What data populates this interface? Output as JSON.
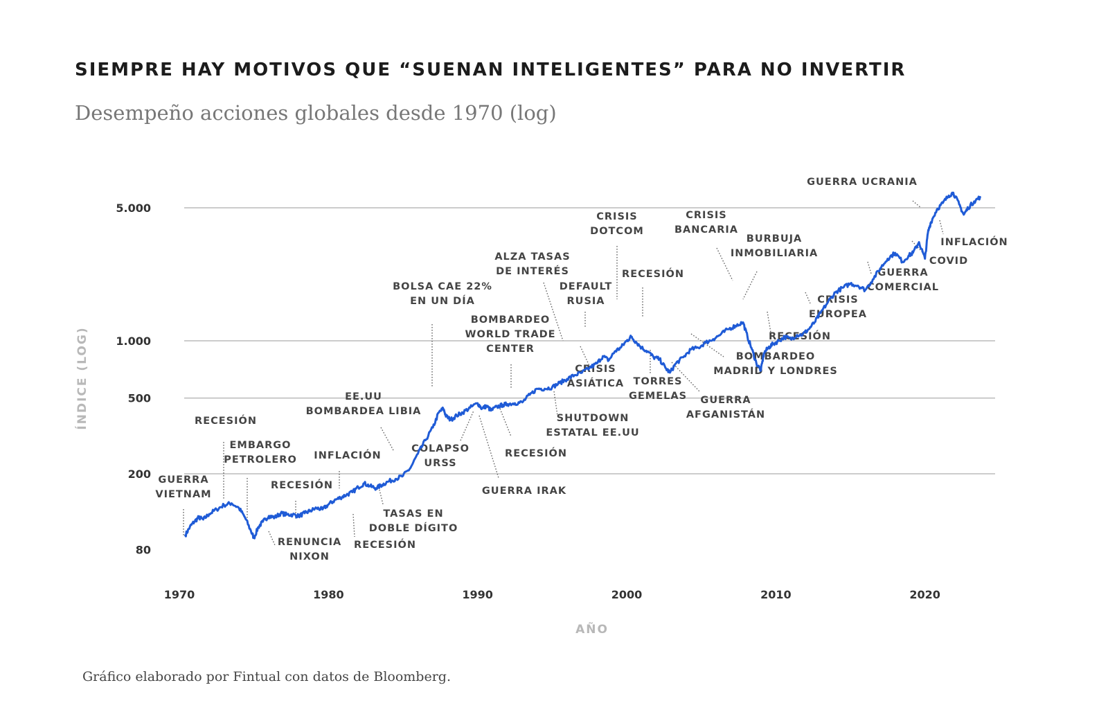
{
  "header": {
    "title": "SIEMPRE HAY MOTIVOS QUE “SUENAN INTELIGENTES” PARA NO INVERTIR",
    "subtitle": "Desempeño acciones globales desde 1970 (log)"
  },
  "footer": {
    "source": "Gráfico elaborado por Fintual con datos de Bloomberg."
  },
  "colors": {
    "line": "#1f5bd6",
    "grid": "#9a9a9a",
    "text": "#333333",
    "axis_label": "#b8b8b8"
  },
  "chart_data": {
    "type": "line",
    "title": "SIEMPRE HAY MOTIVOS QUE “SUENAN INTELIGENTES” PARA NO INVERTIR",
    "subtitle": "Desempeño acciones globales desde 1970 (log)",
    "xlabel": "AÑO",
    "ylabel": "ÍNDICE (LOG)",
    "yscale": "log",
    "xlim": [
      1970,
      2024
    ],
    "ylim": [
      80,
      6000
    ],
    "grid": "horizontal",
    "x_ticks": [
      1970,
      1980,
      1990,
      2000,
      2010,
      2020
    ],
    "x_tick_labels": [
      "1970",
      "1980",
      "1990",
      "2000",
      "2010",
      "2020"
    ],
    "y_ticks": [
      80,
      200,
      500,
      1000,
      5000
    ],
    "y_tick_labels": [
      "80",
      "200",
      "500",
      "1.000",
      "5.000"
    ],
    "series": [
      {
        "x": [
          1970.4,
          1970.7,
          1971.0,
          1971.3,
          1971.6,
          1972.0,
          1972.5,
          1973.0,
          1973.5,
          1974.0,
          1974.4,
          1974.8,
          1975.0,
          1975.3,
          1975.6,
          1976.0,
          1976.4,
          1976.8,
          1977.2,
          1977.6,
          1978.0,
          1978.4,
          1978.8,
          1979.2,
          1979.6,
          1980.0,
          1980.4,
          1980.8,
          1981.2,
          1981.6,
          1982.0,
          1982.4,
          1982.8,
          1983.2,
          1983.6,
          1984.0,
          1984.5,
          1985.0,
          1985.5,
          1986.0,
          1986.5,
          1987.0,
          1987.4,
          1987.7,
          1987.9,
          1988.2,
          1988.6,
          1989.0,
          1989.5,
          1990.0,
          1990.3,
          1990.6,
          1990.9,
          1991.3,
          1991.7,
          1992.0,
          1992.5,
          1993.0,
          1993.5,
          1994.0,
          1994.5,
          1995.0,
          1995.5,
          1996.0,
          1996.5,
          1997.0,
          1997.5,
          1998.0,
          1998.4,
          1998.8,
          1999.2,
          1999.6,
          2000.0,
          2000.3,
          2000.6,
          2001.0,
          2001.4,
          2001.8,
          2002.2,
          2002.6,
          2002.9,
          2003.3,
          2003.8,
          2004.3,
          2004.8,
          2005.3,
          2005.8,
          2006.3,
          2006.8,
          2007.3,
          2007.8,
          2008.1,
          2008.4,
          2008.7,
          2009.0,
          2009.2,
          2009.5,
          2009.8,
          2010.2,
          2010.6,
          2011.0,
          2011.4,
          2011.8,
          2012.2,
          2012.6,
          2013.0,
          2013.5,
          2014.0,
          2014.5,
          2015.0,
          2015.5,
          2016.0,
          2016.5,
          2017.0,
          2017.5,
          2018.0,
          2018.5,
          2018.9,
          2019.2,
          2019.6,
          2020.0,
          2020.2,
          2020.4,
          2020.8,
          2021.2,
          2021.6,
          2021.9,
          2022.3,
          2022.6,
          2022.9,
          2023.3,
          2023.7
        ],
        "y": [
          95,
          105,
          112,
          118,
          115,
          123,
          130,
          137,
          140,
          132,
          118,
          100,
          92,
          105,
          112,
          120,
          118,
          124,
          122,
          122,
          120,
          124,
          128,
          132,
          130,
          138,
          145,
          150,
          155,
          160,
          170,
          178,
          172,
          168,
          175,
          182,
          188,
          195,
          215,
          255,
          300,
          350,
          420,
          440,
          400,
          385,
          405,
          420,
          445,
          470,
          440,
          455,
          430,
          450,
          460,
          465,
          470,
          475,
          520,
          560,
          560,
          570,
          600,
          630,
          660,
          680,
          720,
          760,
          830,
          790,
          880,
          920,
          1000,
          1050,
          990,
          920,
          880,
          820,
          800,
          720,
          680,
          760,
          820,
          900,
          920,
          980,
          1020,
          1080,
          1150,
          1200,
          1250,
          1050,
          900,
          760,
          700,
          860,
          920,
          960,
          1000,
          1050,
          1020,
          1070,
          1080,
          1150,
          1250,
          1400,
          1600,
          1800,
          1900,
          2000,
          1950,
          1850,
          2100,
          2400,
          2700,
          2900,
          2600,
          2800,
          2900,
          3300,
          2700,
          3700,
          4200,
          4900,
          5300,
          5800,
          6000,
          5200,
          4600,
          5000,
          5400,
          5700
        ]
      }
    ],
    "annotations": [
      {
        "lines": [
          "GUERRA",
          "VIETNAM"
        ],
        "x": 1970.3
      },
      {
        "lines": [
          "RECESIÓN"
        ],
        "x": 1973.0
      },
      {
        "lines": [
          "EMBARGO",
          "PETROLERO"
        ],
        "x": 1974.8
      },
      {
        "lines": [
          "RENUNCIA",
          "NIXON"
        ],
        "x": 1976.7
      },
      {
        "lines": [
          "RECESIÓN"
        ],
        "x": 1979.0
      },
      {
        "lines": [
          "INFLACIÓN"
        ],
        "x": 1981.8
      },
      {
        "lines": [
          "RECESIÓN"
        ],
        "x": 1982.8
      },
      {
        "lines": [
          "TASAS EN",
          "DOBLE DÍGITO"
        ],
        "x": 1984.2
      },
      {
        "lines": [
          "EE.UU",
          "BOMBARDEA LIBIA"
        ],
        "x": 1986.0
      },
      {
        "lines": [
          "BOLSA CAE 22%",
          "EN UN DÍA"
        ],
        "x": 1987.8
      },
      {
        "lines": [
          "COLAPSO",
          "URSS"
        ],
        "x": 1990.6
      },
      {
        "lines": [
          "GUERRA IRAK"
        ],
        "x": 1991.0
      },
      {
        "lines": [
          "RECESIÓN"
        ],
        "x": 1992.2
      },
      {
        "lines": [
          "BOMBARDEO",
          "WORLD TRADE",
          "CENTER"
        ],
        "x": 1993.2
      },
      {
        "lines": [
          "SHUTDOWN",
          "ESTATAL EE.UU"
        ],
        "x": 1995.7
      },
      {
        "lines": [
          "ALZA TASAS",
          "DE INTERÉS"
        ],
        "x": 1996.6
      },
      {
        "lines": [
          "CRISIS",
          "ASIÁTICA"
        ],
        "x": 1997.6
      },
      {
        "lines": [
          "DEFAULT",
          "RUSIA"
        ],
        "x": 1998.2
      },
      {
        "lines": [
          "CRISIS",
          "DOTCOM"
        ],
        "x": 1999.7
      },
      {
        "lines": [
          "RECESIÓN"
        ],
        "x": 2001.3
      },
      {
        "lines": [
          "TORRES",
          "GEMELAS"
        ],
        "x": 2001.8
      },
      {
        "lines": [
          "GUERRA",
          "AFGANISTÁN"
        ],
        "x": 2003.2
      },
      {
        "lines": [
          "BOMBARDEO",
          "MADRID Y LONDRES"
        ],
        "x": 2004.7
      },
      {
        "lines": [
          "CRISIS",
          "BANCARIA"
        ],
        "x": 2006.8
      },
      {
        "lines": [
          "BURBUJA",
          "INMOBILIARIA"
        ],
        "x": 2008.0
      },
      {
        "lines": [
          "RECESIÓN"
        ],
        "x": 2009.7
      },
      {
        "lines": [
          "CRISIS",
          "EUROPEA"
        ],
        "x": 2012.0
      },
      {
        "lines": [
          "GUERRA",
          "COMERCIAL"
        ],
        "x": 2018.1
      },
      {
        "lines": [
          "COVID"
        ],
        "x": 2020.1
      },
      {
        "lines": [
          "GUERRA UCRANIA"
        ],
        "x": 2022.1
      },
      {
        "lines": [
          "INFLACIÓN"
        ],
        "x": 2022.8
      }
    ]
  }
}
